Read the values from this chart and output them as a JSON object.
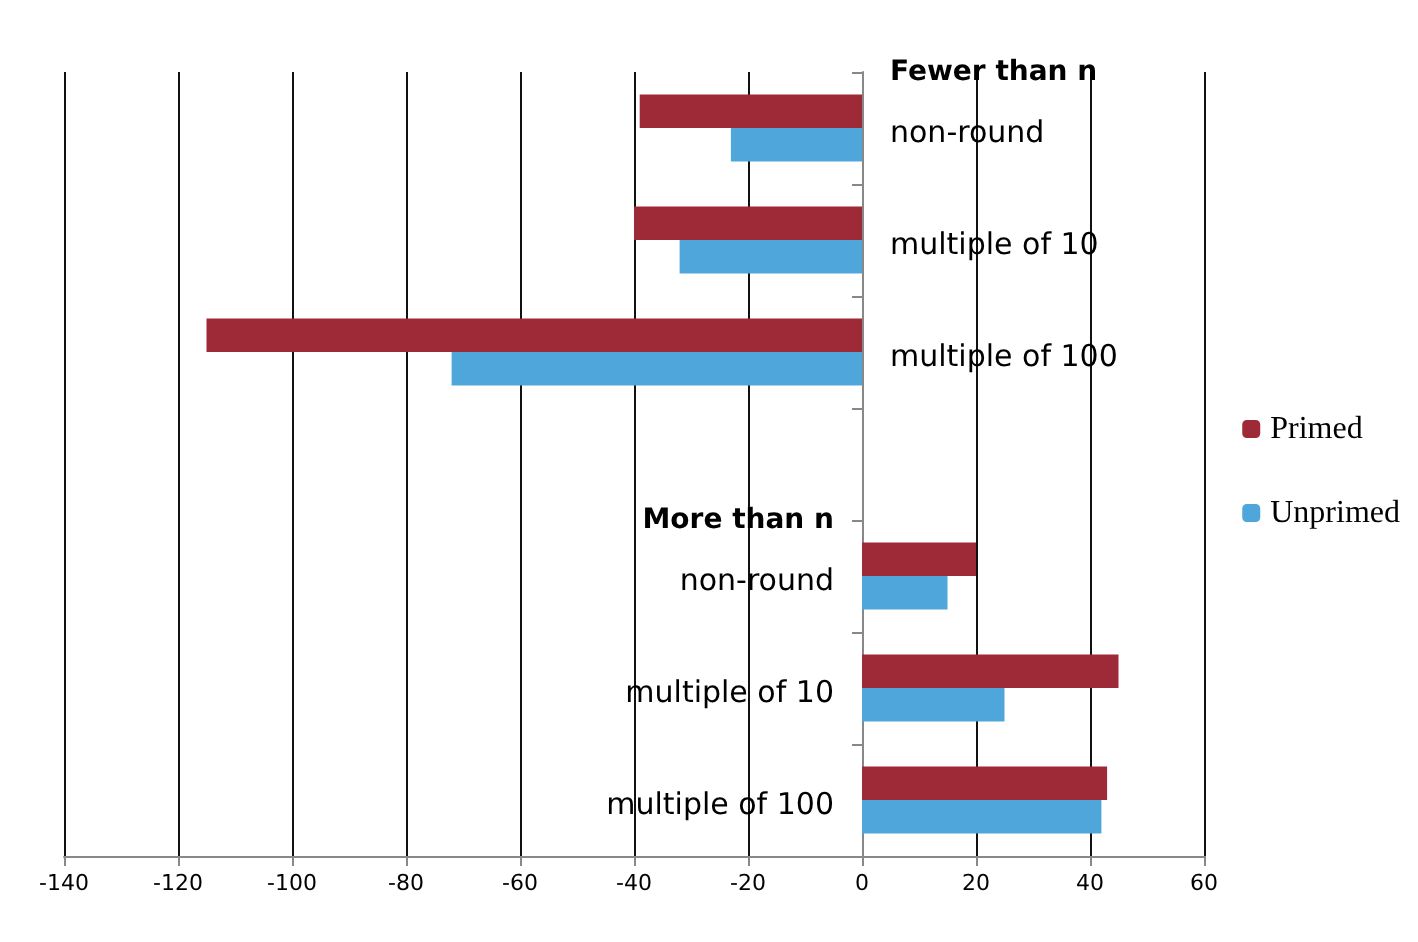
{
  "chart_data": {
    "type": "bar",
    "orientation": "horizontal",
    "categories": [
      "non-round",
      "multiple of 10",
      "multiple of 100",
      null,
      "non-round",
      "multiple of 10",
      "multiple of 100"
    ],
    "series": [
      {
        "name": "Primed",
        "color": "#9e2a37",
        "values": [
          -39,
          -40,
          -115,
          null,
          20,
          45,
          43
        ]
      },
      {
        "name": "Unprimed",
        "color": "#4ea6da",
        "values": [
          -23,
          -32,
          -72,
          null,
          15,
          25,
          42
        ]
      }
    ],
    "annotations": [
      "Fewer than n",
      "More than n"
    ],
    "xlim": [
      -140,
      60
    ],
    "xticks": [
      -140,
      -120,
      -100,
      -80,
      -60,
      -40,
      -20,
      0,
      20,
      40,
      60
    ],
    "grid": "x",
    "legend": "right"
  }
}
